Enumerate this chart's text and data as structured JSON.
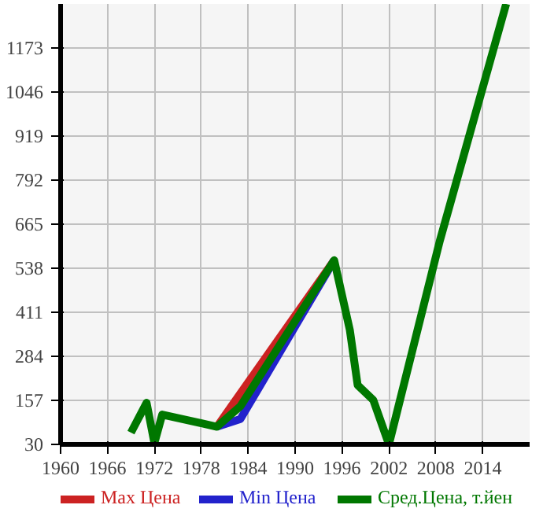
{
  "chart_data": {
    "type": "line",
    "xlim": [
      1960,
      2020
    ],
    "xticks": [
      1960,
      1966,
      1972,
      1978,
      1984,
      1990,
      1996,
      2002,
      2008,
      2014
    ],
    "ylim": [
      30,
      1300
    ],
    "yticks": [
      30,
      157,
      284,
      411,
      538,
      665,
      792,
      919,
      1046,
      1173
    ],
    "grid": true,
    "legend": "bottom",
    "marker": "none",
    "line_style": "solid",
    "series": [
      {
        "name": "Max Цена",
        "color": "#cc2222",
        "x": [
          1980,
          1995
        ],
        "values": [
          81,
          561
        ]
      },
      {
        "name": "Min Цена",
        "color": "#2222cc",
        "x": [
          1980,
          1983,
          1995
        ],
        "values": [
          81,
          103,
          561
        ]
      },
      {
        "name": "Сред.Цена, т.йен",
        "color": "#007700",
        "x": [
          1969,
          1971,
          1972,
          1973,
          1980,
          1983,
          1995,
          1997,
          1998,
          2000,
          2002,
          2008.5,
          2017
        ],
        "values": [
          64,
          150,
          34,
          116,
          81,
          140,
          561,
          360,
          201,
          158,
          30,
          616,
          1300
        ]
      }
    ]
  }
}
